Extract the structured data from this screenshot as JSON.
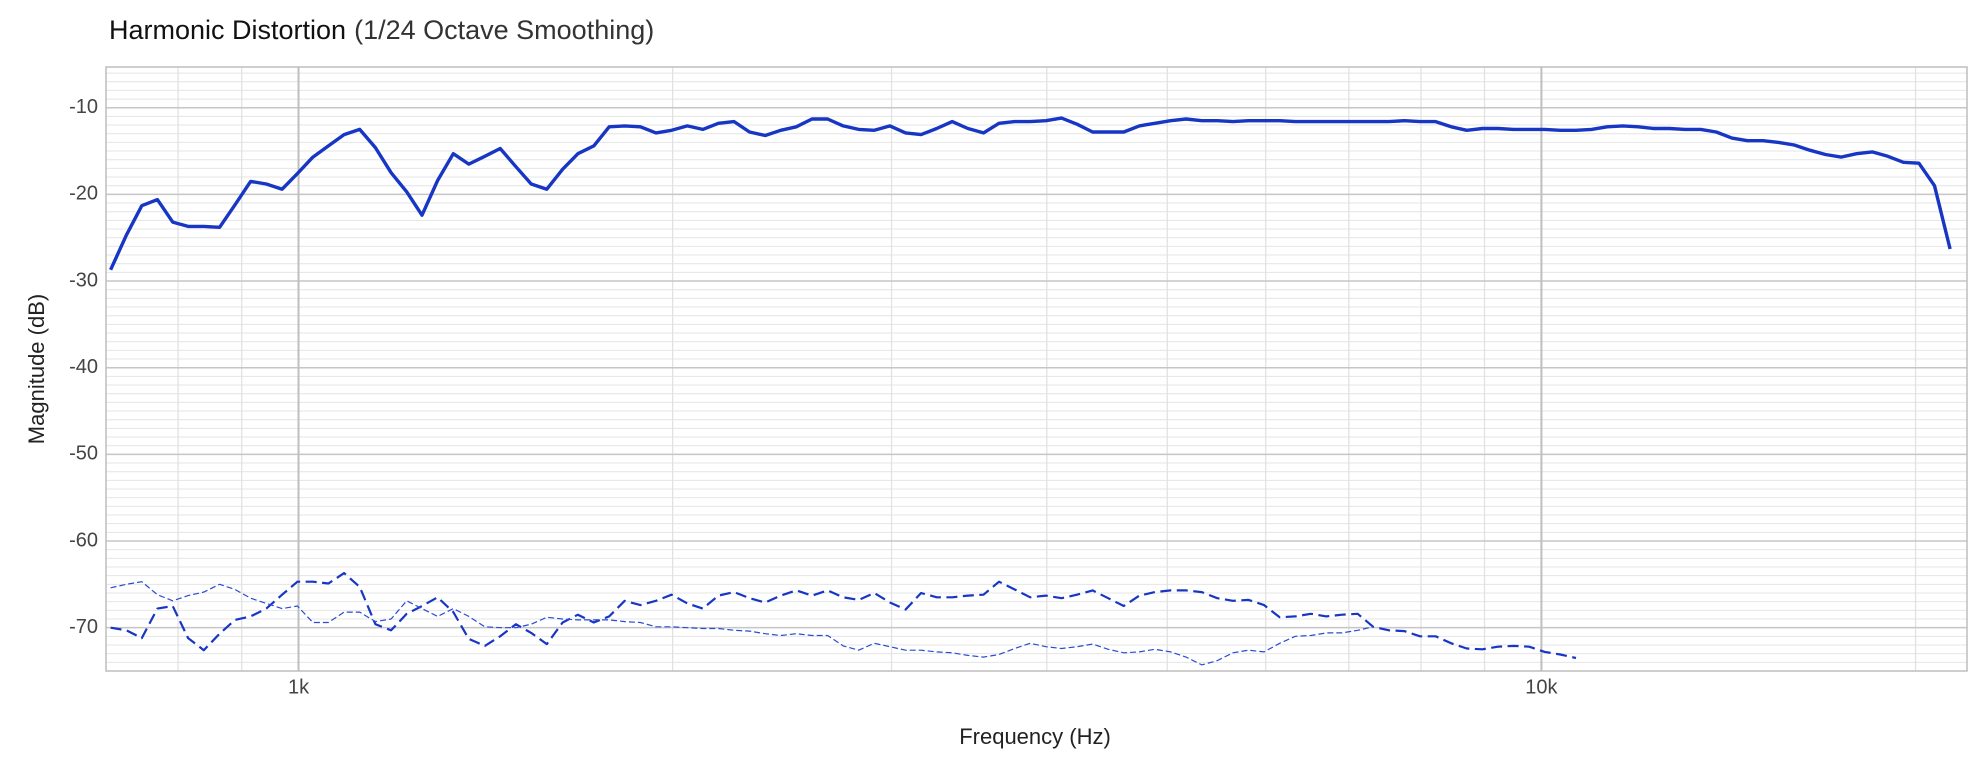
{
  "chart_data": {
    "type": "line",
    "title": "Harmonic Distortion",
    "subtitle": "(1/24 Octave Smoothing)",
    "xlabel": "Frequency (Hz)",
    "ylabel": "Magnitude (dB)",
    "xscale": "log",
    "xlim": [
      700,
      22000
    ],
    "xticks": [
      {
        "value": 1000,
        "label": "1k"
      },
      {
        "value": 10000,
        "label": "10k"
      }
    ],
    "ylim": [
      -75,
      -5.3
    ],
    "yticks": [
      -10,
      -20,
      -30,
      -40,
      -50,
      -60,
      -70
    ],
    "grid": true,
    "minor_grid": true,
    "x": [
      706,
      727,
      748,
      770,
      792,
      815,
      839,
      864,
      889,
      915,
      942,
      970,
      998,
      1027,
      1057,
      1088,
      1120,
      1153,
      1187,
      1222,
      1257,
      1294,
      1332,
      1371,
      1412,
      1453,
      1496,
      1539,
      1584,
      1631,
      1678,
      1728,
      1778,
      1830,
      1884,
      1939,
      1996,
      2055,
      2115,
      2177,
      2241,
      2306,
      2374,
      2443,
      2515,
      2589,
      2665,
      2743,
      2823,
      2906,
      2991,
      3079,
      3169,
      3262,
      3357,
      3456,
      3557,
      3661,
      3769,
      3879,
      3993,
      4110,
      4230,
      4354,
      4482,
      4613,
      4748,
      4887,
      5031,
      5178,
      5330,
      5486,
      5647,
      5812,
      5983,
      6158,
      6338,
      6524,
      6715,
      6912,
      7115,
      7323,
      7538,
      7759,
      7986,
      8220,
      8461,
      8709,
      8964,
      9227,
      9497,
      9776,
      10062,
      10357,
      10661,
      10973,
      11295,
      11626,
      11967,
      12317,
      12678,
      13050,
      13432,
      13826,
      14231,
      14648,
      15077,
      15519,
      15974,
      16442,
      16924,
      17420,
      17930,
      18455,
      18996,
      19553,
      20126,
      20715,
      21322
    ],
    "series": [
      {
        "color": "#1736c4",
        "linestyle": "solid",
        "linewidth": 3.4,
        "values": [
          -28.7,
          -24.7,
          -21.3,
          -20.6,
          -23.2,
          -23.7,
          -23.7,
          -23.8,
          -21.2,
          -18.5,
          -18.8,
          -19.4,
          -17.6,
          -15.7,
          -14.4,
          -13.1,
          -12.5,
          -14.6,
          -17.5,
          -19.7,
          -22.4,
          -18.4,
          -15.3,
          -16.5,
          -15.6,
          -14.7,
          -16.8,
          -18.8,
          -19.4,
          -17.1,
          -15.3,
          -14.4,
          -12.2,
          -12.1,
          -12.2,
          -12.9,
          -12.6,
          -12.1,
          -12.5,
          -11.8,
          -11.6,
          -12.8,
          -13.2,
          -12.6,
          -12.2,
          -11.3,
          -11.3,
          -12.1,
          -12.5,
          -12.6,
          -12.1,
          -12.9,
          -13.1,
          -12.4,
          -11.6,
          -12.4,
          -12.9,
          -11.8,
          -11.6,
          -11.6,
          -11.5,
          -11.2,
          -11.9,
          -12.8,
          -12.8,
          -12.8,
          -12.1,
          -11.8,
          -11.5,
          -11.3,
          -11.5,
          -11.5,
          -11.6,
          -11.5,
          -11.5,
          -11.5,
          -11.6,
          -11.6,
          -11.6,
          -11.6,
          -11.6,
          -11.6,
          -11.6,
          -11.5,
          -11.6,
          -11.6,
          -12.2,
          -12.6,
          -12.4,
          -12.4,
          -12.5,
          -12.5,
          -12.5,
          -12.6,
          -12.6,
          -12.5,
          -12.2,
          -12.1,
          -12.2,
          -12.4,
          -12.4,
          -12.5,
          -12.5,
          -12.8,
          -13.5,
          -13.8,
          -13.8,
          -14.0,
          -14.3,
          -14.9,
          -15.4,
          -15.7,
          -15.3,
          -15.1,
          -15.6,
          -16.3,
          -16.4,
          -19.0,
          -26.3
        ]
      },
      {
        "color": "#1736c4",
        "linestyle": "dashed",
        "linewidth": 2.2,
        "values": [
          -70.0,
          -70.3,
          -71.2,
          -67.8,
          -67.5,
          -71.2,
          -72.6,
          -70.7,
          -69.1,
          -68.7,
          -67.8,
          -66.2,
          -64.7,
          -64.7,
          -64.9,
          -63.7,
          -65.3,
          -69.6,
          -70.3,
          -68.4,
          -67.5,
          -66.5,
          -68.2,
          -71.3,
          -72.1,
          -71.0,
          -69.6,
          -70.6,
          -71.9,
          -69.4,
          -68.5,
          -69.4,
          -68.7,
          -66.9,
          -67.4,
          -66.9,
          -66.2,
          -67.2,
          -67.8,
          -66.3,
          -65.9,
          -66.6,
          -67.1,
          -66.3,
          -65.7,
          -66.3,
          -65.7,
          -66.5,
          -66.8,
          -66.0,
          -67.1,
          -67.9,
          -66.0,
          -66.5,
          -66.5,
          -66.3,
          -66.2,
          -64.7,
          -65.6,
          -66.5,
          -66.3,
          -66.6,
          -66.2,
          -65.7,
          -66.6,
          -67.5,
          -66.3,
          -65.9,
          -65.7,
          -65.7,
          -65.9,
          -66.6,
          -66.9,
          -66.8,
          -67.4,
          -68.8,
          -68.7,
          -68.4,
          -68.7,
          -68.5,
          -68.4,
          -69.9,
          -70.3,
          -70.4,
          -71.0,
          -71.0,
          -71.8,
          -72.4,
          -72.5,
          -72.2,
          -72.1,
          -72.2,
          -72.8,
          -73.1,
          -73.5,
          null,
          null,
          null,
          null,
          null,
          null,
          null,
          null,
          null,
          null,
          null,
          null,
          null,
          null,
          null,
          null,
          null,
          null,
          null,
          null,
          null,
          null,
          null,
          null
        ]
      },
      {
        "color": "#2a4bd2",
        "linestyle": "dashed",
        "linewidth": 1.2,
        "values": [
          -65.4,
          -65.0,
          -64.7,
          -66.2,
          -66.9,
          -66.3,
          -65.9,
          -65.0,
          -65.6,
          -66.6,
          -67.2,
          -67.8,
          -67.5,
          -69.4,
          -69.4,
          -68.2,
          -68.2,
          -69.3,
          -69.0,
          -66.9,
          -67.8,
          -68.7,
          -67.8,
          -68.7,
          -69.9,
          -70.0,
          -70.0,
          -69.6,
          -68.8,
          -69.0,
          -69.1,
          -69.1,
          -69.1,
          -69.3,
          -69.4,
          -69.9,
          -69.9,
          -70.0,
          -70.1,
          -70.1,
          -70.3,
          -70.4,
          -70.7,
          -70.9,
          -70.7,
          -70.9,
          -70.9,
          -72.1,
          -72.6,
          -71.8,
          -72.2,
          -72.6,
          -72.6,
          -72.8,
          -72.9,
          -73.2,
          -73.4,
          -73.1,
          -72.4,
          -71.8,
          -72.2,
          -72.4,
          -72.2,
          -71.9,
          -72.5,
          -72.9,
          -72.8,
          -72.5,
          -72.8,
          -73.4,
          -74.3,
          -73.8,
          -72.9,
          -72.6,
          -72.8,
          -71.8,
          -71.0,
          -70.9,
          -70.6,
          -70.6,
          -70.3,
          -69.9,
          null,
          null,
          null,
          null,
          null,
          null,
          null,
          null,
          null,
          null,
          null,
          null,
          null,
          null,
          null,
          null,
          null,
          null,
          null,
          null,
          null,
          null,
          null,
          null,
          null,
          null,
          null,
          null,
          null,
          null,
          null,
          null,
          null,
          null,
          null,
          null,
          null
        ]
      }
    ]
  }
}
